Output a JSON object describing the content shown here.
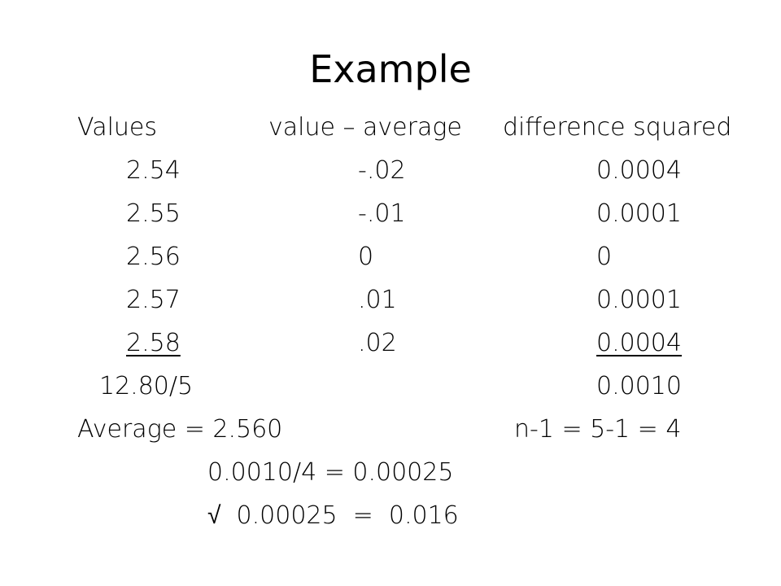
{
  "title": "Example",
  "table": {
    "header": [
      "Values",
      "value – average",
      "difference squared"
    ],
    "rows": [
      [
        "2.54",
        "-.02",
        "0.0004"
      ],
      [
        "2.55",
        "-.01",
        "0.0001"
      ],
      [
        "2.56",
        "0",
        "0"
      ],
      [
        "2.57",
        ".01",
        "0.0001"
      ],
      [
        "2.58",
        ".02",
        "0.0004"
      ]
    ]
  },
  "sum": {
    "values": "12.80/5",
    "squares": "0.0010"
  },
  "average": "Average = 2.560",
  "degrees": "n-1 = 5-1 = 4",
  "variance": "0.0010/4 = 0.00025",
  "deviation": "√  0.00025  =  0.016"
}
